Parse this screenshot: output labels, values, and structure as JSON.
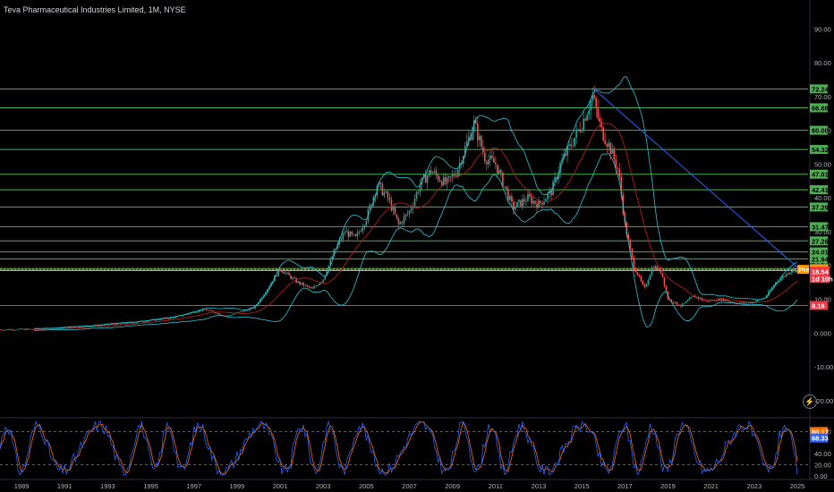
{
  "header": {
    "title": "Teva Pharmaceutical Industries Limited, 1M, NYSE"
  },
  "icons": {
    "replay": "lightning-icon"
  },
  "colors": {
    "background": "#000000",
    "up": "#26a69a",
    "down": "#ef5350",
    "green_level": "#4caf50",
    "red_level": "#f23645",
    "bollinger": "#26c6da",
    "ma": "#b71c1c",
    "trend": "#2962ff",
    "stoch_k": "#2962ff",
    "stoch_d": "#ff6d00"
  },
  "chart_data": [
    {
      "type": "line",
      "name": "price",
      "x_axis": {
        "range": [
          1988.0,
          2025.5
        ],
        "ticks": [
          "1989",
          "1991",
          "1993",
          "1995",
          "1997",
          "1999",
          "2001",
          "2003",
          "2005",
          "2007",
          "2009",
          "2011",
          "2013",
          "2015",
          "2017",
          "2019",
          "2021",
          "2023",
          "2025"
        ]
      },
      "y_axis": {
        "range": [
          -27,
          100
        ],
        "ticks": [
          "90.00",
          "80.00",
          "70.00",
          "60.00",
          "50.00",
          "40.00",
          "30.00",
          "20.00",
          "10.00",
          "0.000",
          "-10.00",
          "-20.00"
        ]
      },
      "price_path": [
        [
          1988.0,
          1.0
        ],
        [
          1990.0,
          1.2
        ],
        [
          1992.0,
          2.0
        ],
        [
          1994.0,
          3.0
        ],
        [
          1996.0,
          4.5
        ],
        [
          1997.5,
          7.0
        ],
        [
          1998.5,
          5.0
        ],
        [
          1999.8,
          7.5
        ],
        [
          2000.5,
          14.0
        ],
        [
          2001.0,
          19.0
        ],
        [
          2001.8,
          15.0
        ],
        [
          2002.5,
          13.0
        ],
        [
          2003.0,
          16.0
        ],
        [
          2003.5,
          24.0
        ],
        [
          2004.0,
          30.0
        ],
        [
          2004.5,
          28.0
        ],
        [
          2005.0,
          34.0
        ],
        [
          2005.5,
          44.0
        ],
        [
          2006.0,
          40.0
        ],
        [
          2006.5,
          32.0
        ],
        [
          2007.0,
          36.0
        ],
        [
          2007.5,
          44.0
        ],
        [
          2008.0,
          48.0
        ],
        [
          2008.7,
          44.0
        ],
        [
          2009.2,
          48.0
        ],
        [
          2009.6,
          55.0
        ],
        [
          2010.0,
          62.0
        ],
        [
          2010.5,
          52.0
        ],
        [
          2011.0,
          50.0
        ],
        [
          2011.5,
          42.0
        ],
        [
          2011.8,
          37.0
        ],
        [
          2012.5,
          40.0
        ],
        [
          2013.0,
          38.0
        ],
        [
          2013.6,
          42.0
        ],
        [
          2014.0,
          50.0
        ],
        [
          2014.6,
          57.0
        ],
        [
          2015.0,
          62.0
        ],
        [
          2015.5,
          70.0
        ],
        [
          2015.9,
          60.0
        ],
        [
          2016.3,
          55.0
        ],
        [
          2016.7,
          48.0
        ],
        [
          2017.0,
          32.0
        ],
        [
          2017.4,
          20.0
        ],
        [
          2017.9,
          13.0
        ],
        [
          2018.3,
          20.0
        ],
        [
          2018.7,
          18.0
        ],
        [
          2019.0,
          10.0
        ],
        [
          2019.6,
          8.0
        ],
        [
          2020.2,
          11.0
        ],
        [
          2020.8,
          9.5
        ],
        [
          2021.5,
          10.0
        ],
        [
          2022.2,
          8.8
        ],
        [
          2022.9,
          9.0
        ],
        [
          2023.5,
          10.5
        ],
        [
          2024.0,
          15.0
        ],
        [
          2024.5,
          17.5
        ],
        [
          2024.8,
          19.0
        ],
        [
          2025.0,
          18.54
        ]
      ],
      "levels_green": [
        {
          "value": 72.24,
          "label": "72.24"
        },
        {
          "value": 66.66,
          "label": "66.66"
        },
        {
          "value": 60.0,
          "label": "60.00"
        },
        {
          "value": 54.32,
          "label": "54.32"
        },
        {
          "value": 47.01,
          "label": "47.01"
        },
        {
          "value": 42.41,
          "label": "42.41"
        },
        {
          "value": 37.29,
          "label": "37.29"
        },
        {
          "value": 31.47,
          "label": "31.47"
        },
        {
          "value": 27.26,
          "label": "27.26"
        },
        {
          "value": 24.01,
          "label": "24.01"
        },
        {
          "value": 21.94,
          "label": "21.94"
        },
        {
          "value": 19.1,
          "label": "19.10"
        }
      ],
      "levels_red": [
        {
          "value": 8.16,
          "label": "8.16"
        }
      ],
      "tags": {
        "pre": {
          "value": 18.84,
          "label": "18.84",
          "badge": "Pre"
        },
        "last": {
          "value": 18.54,
          "label": "18.54",
          "countdown": "1d 10h"
        }
      },
      "trendline": [
        [
          2015.6,
          72.0
        ],
        [
          2025.0,
          19.5
        ]
      ]
    },
    {
      "type": "line",
      "name": "stochastic",
      "y_axis": {
        "range": [
          0,
          100
        ],
        "ticks": [
          "80.00",
          "40.00",
          "20.00",
          "0.00"
        ]
      },
      "levels": [
        80,
        20
      ],
      "values": {
        "k": 80.17,
        "d": 68.33
      }
    }
  ]
}
